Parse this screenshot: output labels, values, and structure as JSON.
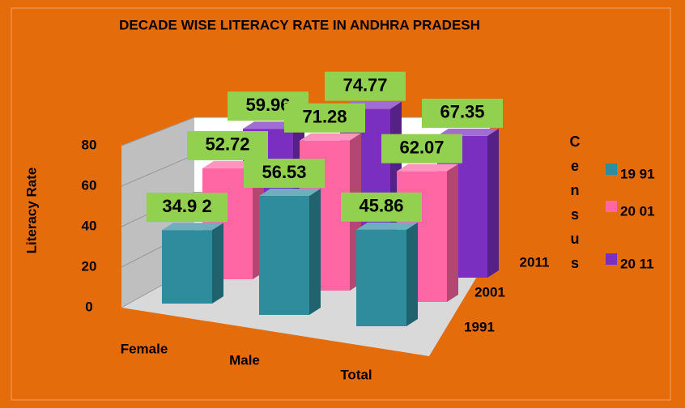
{
  "chart_data": {
    "type": "bar3d",
    "title": "DECADE WISE LITERACY RATE IN ANDHRA PRADESH",
    "y_label": "Literacy Rate",
    "legend_title": "Census",
    "categories": [
      "Female",
      "Male",
      "Total"
    ],
    "depth_categories": [
      "1991",
      "2001",
      "2011"
    ],
    "series": [
      {
        "name": "19 91",
        "color": "#2e8c9c",
        "values": [
          34.92,
          56.53,
          45.86
        ],
        "value_labels": [
          "34.9 2",
          "56.53",
          "45.86"
        ]
      },
      {
        "name": "20 01",
        "color": "#ff66a3",
        "values": [
          52.72,
          71.28,
          62.07
        ],
        "value_labels": [
          "52.72",
          "71.28",
          "62.07"
        ]
      },
      {
        "name": "20 11",
        "color": "#7a2fc0",
        "values": [
          59.96,
          74.77,
          67.35
        ],
        "value_labels": [
          "59.96",
          "74.77",
          "67.35"
        ]
      }
    ],
    "label_color": "#92d050",
    "ylim": [
      0,
      80
    ],
    "yticks": [
      0,
      20,
      40,
      60,
      80
    ],
    "grid": true
  }
}
